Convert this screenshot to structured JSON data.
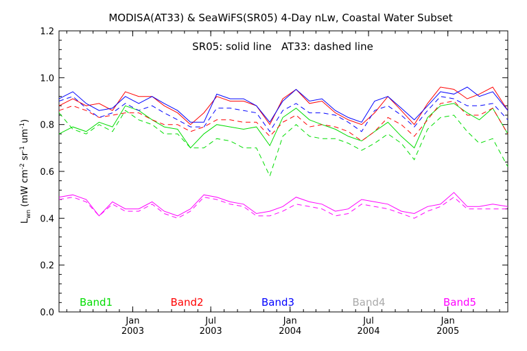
{
  "chart_data": {
    "type": "line",
    "title": "MODISA(AT33) & SeaWiFS(SR05) 4-Day nLw, Coastal Water Subset",
    "annotation": "SR05: solid line   AT33: dashed line",
    "ylabel": "L_wn (mW cm^-2 sr^-1 um^-1)",
    "ylabel_main": "L",
    "ylabel_sub": "wn",
    "ylabel_rest": " (mW cm",
    "ylabel_e1": "-2",
    "ylabel_m2": " sr",
    "ylabel_e2": "-1",
    "ylabel_m3": " um",
    "ylabel_e3": "-1",
    "ylabel_end": ")",
    "ylim": [
      0.0,
      1.2
    ],
    "yticks": [
      "0.0",
      "0.2",
      "0.4",
      "0.6",
      "0.8",
      "1.0",
      "1.2"
    ],
    "xlim": [
      "2002-07-14",
      "2005-05-20"
    ],
    "xticks": [
      {
        "date": "2003-01-01",
        "month": "Jan",
        "year": "2003"
      },
      {
        "date": "2003-07-01",
        "month": "Jul",
        "year": "2003"
      },
      {
        "date": "2004-01-01",
        "month": "Jan",
        "year": "2004"
      },
      {
        "date": "2004-07-01",
        "month": "Jul",
        "year": "2004"
      },
      {
        "date": "2005-01-01",
        "month": "Jan",
        "year": "2005"
      }
    ],
    "x": [
      "2002-07-14",
      "2002-08-15",
      "2002-09-15",
      "2002-10-15",
      "2002-11-15",
      "2002-12-15",
      "2003-01-15",
      "2003-02-15",
      "2003-03-15",
      "2003-04-15",
      "2003-05-15",
      "2003-06-15",
      "2003-07-15",
      "2003-08-15",
      "2003-09-15",
      "2003-10-15",
      "2003-11-15",
      "2003-12-15",
      "2004-01-15",
      "2004-02-15",
      "2004-03-15",
      "2004-04-15",
      "2004-05-15",
      "2004-06-15",
      "2004-07-15",
      "2004-08-15",
      "2004-09-15",
      "2004-10-15",
      "2004-11-15",
      "2004-12-15",
      "2005-01-15",
      "2005-02-15",
      "2005-03-15",
      "2005-04-15",
      "2005-05-20"
    ],
    "series": [
      {
        "name": "Band1",
        "sensor": "SR05",
        "color": "#00dd00",
        "dash": false,
        "values": [
          0.76,
          0.79,
          0.77,
          0.81,
          0.79,
          0.88,
          0.86,
          0.82,
          0.79,
          0.78,
          0.7,
          0.76,
          0.8,
          0.79,
          0.78,
          0.79,
          0.71,
          0.83,
          0.87,
          0.82,
          0.8,
          0.78,
          0.75,
          0.73,
          0.77,
          0.81,
          0.75,
          0.7,
          0.83,
          0.88,
          0.89,
          0.85,
          0.82,
          0.87,
          0.76
        ]
      },
      {
        "name": "Band1",
        "sensor": "AT33",
        "color": "#00dd00",
        "dash": true,
        "values": [
          0.85,
          0.78,
          0.76,
          0.8,
          0.77,
          0.86,
          0.82,
          0.8,
          0.76,
          0.76,
          0.7,
          0.7,
          0.74,
          0.73,
          0.7,
          0.7,
          0.58,
          0.75,
          0.8,
          0.75,
          0.74,
          0.74,
          0.72,
          0.69,
          0.72,
          0.76,
          0.72,
          0.65,
          0.78,
          0.83,
          0.84,
          0.77,
          0.72,
          0.74,
          0.62
        ]
      },
      {
        "name": "Band2",
        "sensor": "SR05",
        "color": "#ff0000",
        "dash": false,
        "values": [
          0.88,
          0.91,
          0.88,
          0.89,
          0.86,
          0.94,
          0.92,
          0.92,
          0.88,
          0.85,
          0.8,
          0.85,
          0.92,
          0.9,
          0.9,
          0.88,
          0.8,
          0.91,
          0.95,
          0.89,
          0.9,
          0.85,
          0.82,
          0.8,
          0.85,
          0.92,
          0.86,
          0.8,
          0.89,
          0.96,
          0.95,
          0.91,
          0.93,
          0.96,
          0.86
        ]
      },
      {
        "name": "Band2",
        "sensor": "AT33",
        "color": "#ff0000",
        "dash": true,
        "values": [
          0.86,
          0.88,
          0.86,
          0.83,
          0.84,
          0.85,
          0.85,
          0.82,
          0.8,
          0.8,
          0.77,
          0.79,
          0.82,
          0.82,
          0.81,
          0.81,
          0.75,
          0.81,
          0.84,
          0.79,
          0.8,
          0.79,
          0.77,
          0.73,
          0.77,
          0.83,
          0.8,
          0.75,
          0.82,
          0.89,
          0.9,
          0.84,
          0.84,
          0.87,
          0.76
        ]
      },
      {
        "name": "Band3",
        "sensor": "SR05",
        "color": "#0000ff",
        "dash": false,
        "values": [
          0.91,
          0.94,
          0.89,
          0.86,
          0.87,
          0.92,
          0.89,
          0.92,
          0.89,
          0.86,
          0.81,
          0.81,
          0.93,
          0.91,
          0.91,
          0.88,
          0.81,
          0.9,
          0.95,
          0.9,
          0.91,
          0.86,
          0.83,
          0.81,
          0.9,
          0.92,
          0.87,
          0.82,
          0.88,
          0.94,
          0.93,
          0.96,
          0.92,
          0.94,
          0.86
        ]
      },
      {
        "name": "Band3",
        "sensor": "AT33",
        "color": "#0000ff",
        "dash": true,
        "values": [
          0.9,
          0.92,
          0.87,
          0.83,
          0.85,
          0.89,
          0.86,
          0.88,
          0.85,
          0.82,
          0.79,
          0.79,
          0.87,
          0.87,
          0.86,
          0.85,
          0.77,
          0.86,
          0.89,
          0.85,
          0.85,
          0.84,
          0.81,
          0.77,
          0.86,
          0.88,
          0.84,
          0.79,
          0.86,
          0.92,
          0.91,
          0.88,
          0.88,
          0.89,
          0.82
        ]
      },
      {
        "name": "Band5",
        "sensor": "SR05",
        "color": "#ff00ff",
        "dash": false,
        "values": [
          0.49,
          0.5,
          0.48,
          0.41,
          0.47,
          0.44,
          0.44,
          0.47,
          0.43,
          0.41,
          0.44,
          0.5,
          0.49,
          0.47,
          0.46,
          0.42,
          0.43,
          0.45,
          0.49,
          0.47,
          0.46,
          0.43,
          0.44,
          0.48,
          0.47,
          0.46,
          0.43,
          0.42,
          0.45,
          0.46,
          0.51,
          0.45,
          0.45,
          0.46,
          0.45
        ]
      },
      {
        "name": "Band5",
        "sensor": "AT33",
        "color": "#ff00ff",
        "dash": true,
        "values": [
          0.48,
          0.49,
          0.47,
          0.41,
          0.46,
          0.43,
          0.43,
          0.46,
          0.42,
          0.4,
          0.43,
          0.49,
          0.48,
          0.46,
          0.45,
          0.41,
          0.41,
          0.43,
          0.46,
          0.45,
          0.44,
          0.41,
          0.42,
          0.46,
          0.45,
          0.44,
          0.42,
          0.4,
          0.43,
          0.45,
          0.49,
          0.44,
          0.44,
          0.44,
          0.44
        ]
      }
    ],
    "legend": [
      {
        "label": "Band1",
        "color": "#00dd00"
      },
      {
        "label": "Band2",
        "color": "#ff0000"
      },
      {
        "label": "Band3",
        "color": "#0000ff"
      },
      {
        "label": "Band4",
        "color": "#aaaaaa"
      },
      {
        "label": "Band5",
        "color": "#ff00ff"
      }
    ],
    "legend_placement": "bottom-inside",
    "grid": false
  }
}
